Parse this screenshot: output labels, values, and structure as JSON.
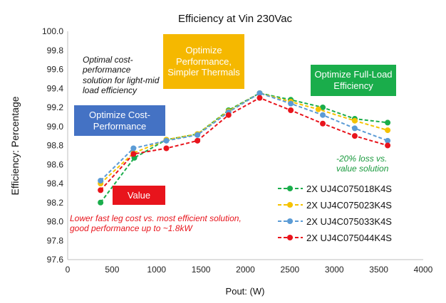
{
  "chart_data": {
    "type": "line",
    "title": "Efficiency at Vin 230Vac",
    "xlabel": "Pout: (W)",
    "ylabel": "Efficiency: Percentage",
    "xlim": [
      0,
      4000
    ],
    "ylim": [
      97.6,
      100.0
    ],
    "xticks": [
      0,
      500,
      1000,
      1500,
      2000,
      2500,
      3000,
      3500,
      4000
    ],
    "yticks": [
      97.6,
      97.8,
      98.0,
      98.2,
      98.4,
      98.6,
      98.8,
      99.0,
      99.2,
      99.4,
      99.6,
      99.8,
      100.0
    ],
    "grid": false,
    "legend_position": "bottom-right",
    "series": [
      {
        "name": "2X UJ4C075018K4S",
        "color": "#1aad4b",
        "x": [
          370,
          750,
          1110,
          1460,
          1810,
          2160,
          2510,
          2870,
          3230,
          3600
        ],
        "y": [
          98.2,
          98.67,
          98.86,
          98.92,
          99.17,
          99.35,
          99.28,
          99.2,
          99.08,
          99.04
        ]
      },
      {
        "name": "2X UJ4C075023K4S",
        "color": "#f5c200",
        "x": [
          370,
          740,
          1110,
          1460,
          1810,
          2160,
          2510,
          2820,
          3230,
          3600
        ],
        "y": [
          98.4,
          98.72,
          98.86,
          98.92,
          99.16,
          99.35,
          99.26,
          99.18,
          99.06,
          98.96
        ]
      },
      {
        "name": "2X UJ4C075033K4S",
        "color": "#5b9bd5",
        "x": [
          370,
          740,
          1110,
          1460,
          1810,
          2160,
          2510,
          2870,
          3230,
          3600
        ],
        "y": [
          98.43,
          98.77,
          98.85,
          98.91,
          99.15,
          99.35,
          99.24,
          99.12,
          98.98,
          98.85
        ]
      },
      {
        "name": "2X UJ4C075044K4S",
        "color": "#e8141c",
        "x": [
          370,
          740,
          1110,
          1460,
          1810,
          2160,
          2510,
          2870,
          3230,
          3600
        ],
        "y": [
          98.33,
          98.71,
          98.77,
          98.85,
          99.12,
          99.3,
          99.17,
          99.03,
          98.9,
          98.8
        ]
      }
    ],
    "annotations": {
      "optimize_performance": "Optimize Performance, Simpler Thermals",
      "optimize_full_load": "Optimize Full-Load Efficiency",
      "optimize_cost": "Optimize Cost-Performance",
      "value": "Value",
      "optimal_note": "Optimal cost-performance solution for light-mid load efficiency",
      "loss_note": "-20% loss vs. value solution",
      "lower_note": "Lower fast leg cost vs. most efficient solution, good performance up to ~1.8kW"
    },
    "annotation_colors": {
      "optimize_performance": "#f5b800",
      "optimize_full_load": "#1aad4b",
      "optimize_cost": "#4472c4",
      "value": "#e8141c",
      "loss_note": "#1a9a3e",
      "lower_note": "#e8141c"
    }
  }
}
